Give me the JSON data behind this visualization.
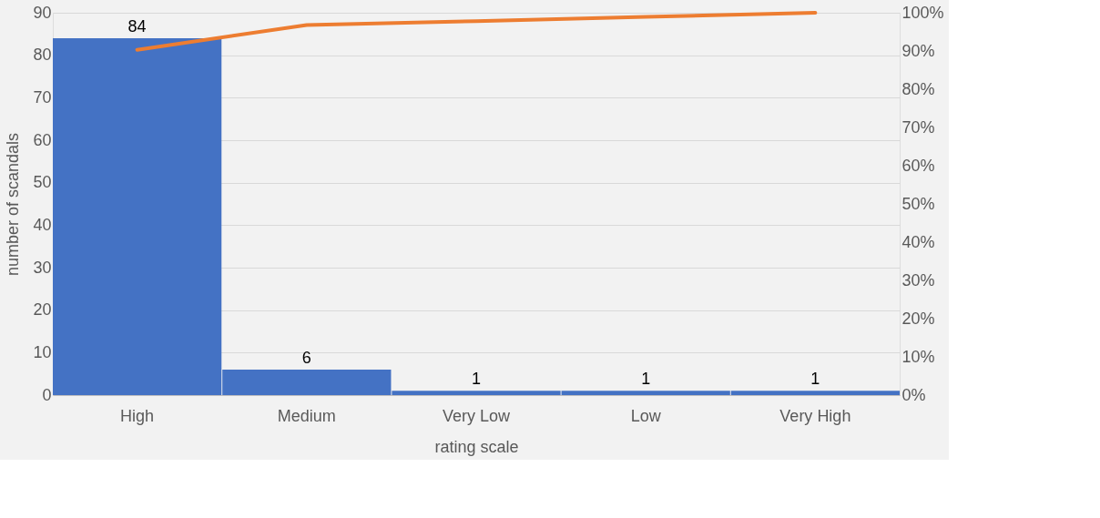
{
  "chart_data": {
    "type": "bar",
    "xlabel": "rating scale",
    "ylabel": "number of scandals",
    "categories": [
      "High",
      "Medium",
      "Very Low",
      "Low",
      "Very High"
    ],
    "series": [
      {
        "color": "#4472c4",
        "values": [
          84,
          6,
          1,
          1,
          1
        ],
        "value_labels": [
          "84",
          "6",
          "1",
          "1",
          "1"
        ]
      },
      {
        "type": "line",
        "axis": "y2",
        "color": "#ed7d31",
        "values": [
          90.3,
          96.8,
          97.8,
          98.9,
          100
        ]
      }
    ],
    "ylim": [
      0,
      90
    ],
    "yticks": [
      0,
      10,
      20,
      30,
      40,
      50,
      60,
      70,
      80,
      90
    ],
    "y2lim": [
      0,
      100
    ],
    "y2ticks": [
      {
        "value": 0,
        "label": "0%"
      },
      {
        "value": 10,
        "label": "10%"
      },
      {
        "value": 20,
        "label": "20%"
      },
      {
        "value": 30,
        "label": "30%"
      },
      {
        "value": 40,
        "label": "40%"
      },
      {
        "value": 50,
        "label": "50%"
      },
      {
        "value": 60,
        "label": "60%"
      },
      {
        "value": 70,
        "label": "70%"
      },
      {
        "value": 80,
        "label": "80%"
      },
      {
        "value": 90,
        "label": "90%"
      },
      {
        "value": 100,
        "label": "100%"
      }
    ],
    "grid": "y"
  }
}
